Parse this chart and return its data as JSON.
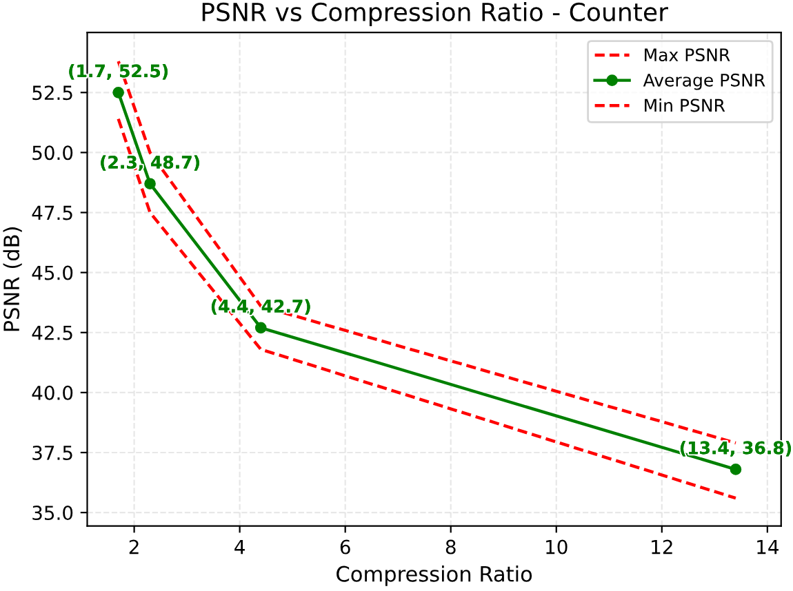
{
  "chart_data": {
    "type": "line",
    "title": "PSNR vs Compression Ratio - Counter",
    "xlabel": "Compression Ratio",
    "ylabel": "PSNR (dB)",
    "x": [
      1.7,
      2.3,
      4.4,
      13.4
    ],
    "series": [
      {
        "name": "Max PSNR",
        "color": "#ff0000",
        "values": [
          53.8,
          50.0,
          43.6,
          37.9
        ],
        "line_style": "dashed",
        "marker": "none"
      },
      {
        "name": "Average PSNR",
        "color": "#008000",
        "values": [
          52.5,
          48.7,
          42.7,
          36.8
        ],
        "line_style": "solid",
        "marker": "circle"
      },
      {
        "name": "Min PSNR",
        "color": "#ff0000",
        "values": [
          51.4,
          47.5,
          41.8,
          35.6
        ],
        "line_style": "dashed",
        "marker": "none"
      }
    ],
    "annotations": [
      {
        "text": "(1.7, 52.5)",
        "x": 1.7,
        "y": 52.5
      },
      {
        "text": "(2.3, 48.7)",
        "x": 2.3,
        "y": 48.7
      },
      {
        "text": "(4.4, 42.7)",
        "x": 4.4,
        "y": 42.7
      },
      {
        "text": "(13.4, 36.8)",
        "x": 13.4,
        "y": 36.8
      }
    ],
    "xlim": [
      1.11,
      14.26
    ],
    "xticks": [
      2,
      4,
      6,
      8,
      10,
      12,
      14
    ],
    "ylim": [
      34.44,
      55.0
    ],
    "yticks": [
      {
        "value": 35.0,
        "label": "35.0"
      },
      {
        "value": 37.5,
        "label": "37.5"
      },
      {
        "value": 40.0,
        "label": "40.0"
      },
      {
        "value": 42.5,
        "label": "42.5"
      },
      {
        "value": 45.0,
        "label": "45.0"
      },
      {
        "value": 47.5,
        "label": "47.5"
      },
      {
        "value": 50.0,
        "label": "50.0"
      },
      {
        "value": 52.5,
        "label": "52.5"
      }
    ],
    "grid": true,
    "legend": "top right"
  }
}
